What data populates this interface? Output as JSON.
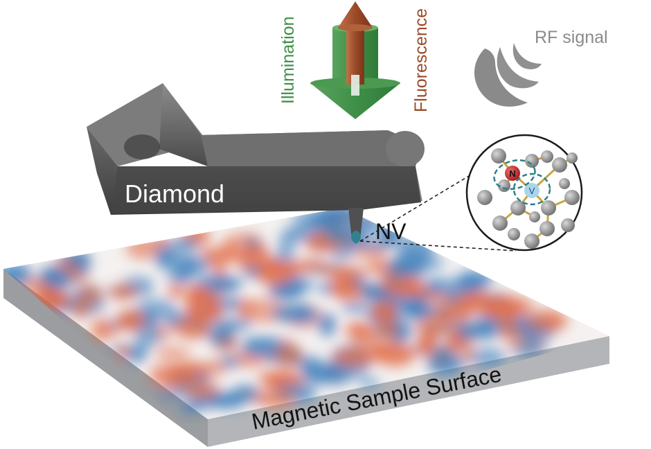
{
  "labels": {
    "illumination": "Illumination",
    "fluorescence": "Fluorescence",
    "rf_signal": "RF signal",
    "diamond": "Diamond",
    "nv": "NV",
    "surface": "Magnetic Sample Surface",
    "atom_n": "N",
    "atom_v": "V"
  },
  "colors": {
    "illumination": "#3f8f48",
    "fluorescence": "#9a4a28",
    "rf": "#8a8a8a",
    "diamond_body": "#5a5a5a",
    "positive_field": "#e0623a",
    "negative_field": "#2e76b8",
    "slab_side": "#a9abae",
    "nitrogen": "#d3262e",
    "vacancy": "#a9d5ec",
    "bond": "#c9a43a",
    "dashed": "#2d7f86"
  },
  "icons": {
    "arrows": "illumination-arrow-icon",
    "rf": "rf-waves-icon",
    "lattice": "nv-lattice-icon"
  }
}
